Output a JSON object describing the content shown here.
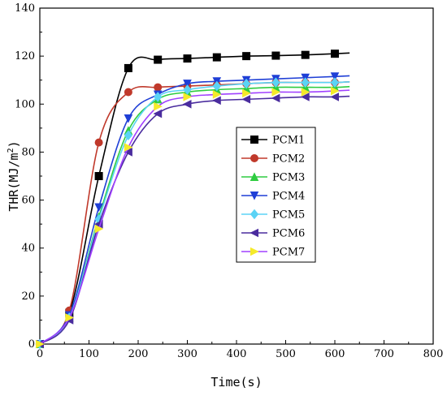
{
  "chart_data": {
    "type": "line",
    "xlabel": "Time(s)",
    "ylabel_main": "THR(MJ/m",
    "ylabel_sup": "2",
    "ylabel_close": ")",
    "xlim": [
      0,
      800
    ],
    "ylim": [
      0,
      140
    ],
    "xticks": [
      "0",
      "100",
      "200",
      "300",
      "400",
      "500",
      "600",
      "700",
      "800"
    ],
    "yticks": [
      "0",
      "20",
      "40",
      "60",
      "80",
      "100",
      "120",
      "140"
    ],
    "grid": false,
    "legend_position": "center-right",
    "series": [
      {
        "name": "PCM1",
        "color": "#000000",
        "marker": "square",
        "x": [
          0,
          60,
          120,
          180,
          240,
          300,
          360,
          420,
          480,
          540,
          600
        ],
        "y": [
          0,
          13,
          70,
          115,
          118.5,
          119,
          119.5,
          120,
          120.2,
          120.5,
          121
        ]
      },
      {
        "name": "PCM2",
        "color": "#c0392b",
        "marker": "circle",
        "x": [
          0,
          60,
          120,
          180,
          240,
          300,
          360,
          420,
          480,
          540,
          600
        ],
        "y": [
          0,
          14,
          84,
          105,
          107,
          107.5,
          108,
          108.5,
          109,
          109,
          109
        ]
      },
      {
        "name": "PCM3",
        "color": "#2ecc40",
        "marker": "triangle-up",
        "x": [
          0,
          60,
          120,
          180,
          240,
          300,
          360,
          420,
          480,
          540,
          600
        ],
        "y": [
          0,
          11,
          53,
          89,
          102,
          105,
          106,
          106.5,
          107,
          107,
          107
        ]
      },
      {
        "name": "PCM4",
        "color": "#1f3fd6",
        "marker": "triangle-down",
        "x": [
          0,
          60,
          120,
          180,
          240,
          300,
          360,
          420,
          480,
          540,
          600
        ],
        "y": [
          0,
          12,
          57,
          94,
          104,
          108.5,
          109.5,
          110,
          110.5,
          111,
          111.5
        ]
      },
      {
        "name": "PCM5",
        "color": "#5bd3f5",
        "marker": "diamond",
        "x": [
          0,
          60,
          120,
          180,
          240,
          300,
          360,
          420,
          480,
          540,
          600
        ],
        "y": [
          0,
          11,
          52,
          87,
          103,
          106,
          107.5,
          108.5,
          109,
          109,
          109
        ]
      },
      {
        "name": "PCM6",
        "color": "#4a2c9e",
        "marker": "triangle-left",
        "x": [
          0,
          60,
          120,
          180,
          240,
          300,
          360,
          420,
          480,
          540,
          600
        ],
        "y": [
          0,
          10,
          50,
          80,
          96,
          100,
          101.5,
          102,
          102.5,
          103,
          103
        ]
      },
      {
        "name": "PCM7",
        "color": "#f5ea2a",
        "marker": "triangle-right",
        "line_color": "#a040ff",
        "x": [
          0,
          60,
          120,
          180,
          240,
          300,
          360,
          420,
          480,
          540,
          600
        ],
        "y": [
          0,
          11,
          48,
          82,
          99,
          103,
          104,
          104.5,
          105,
          105,
          105.5
        ]
      }
    ]
  }
}
